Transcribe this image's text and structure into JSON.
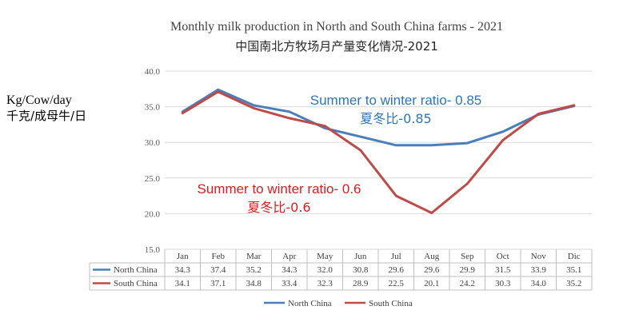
{
  "colors": {
    "north": "#4a7ebb",
    "south": "#be4b48",
    "annotation_north": "#2e75b6",
    "annotation_south": "#e31a1c",
    "grid": "#d9d9d9",
    "table_border": "#bfbfbf"
  },
  "chart_data": {
    "type": "line",
    "title": "Monthly milk production in North and South China farms -  2021",
    "subtitle": "中国南北方牧场月产量变化情况-2021",
    "ylabel": "Kg/Cow/day",
    "ylabel_cn": "千克/成母牛/日",
    "ylim": [
      15.0,
      40.0
    ],
    "yticks": [
      "40.0",
      "35.0",
      "30.0",
      "25.0",
      "20.0",
      "15.0"
    ],
    "grid": true,
    "legend_position": "bottom",
    "categories": [
      "Jan",
      "Feb",
      "Mar",
      "Apr",
      "May",
      "Jun",
      "Jul",
      "Aug",
      "Sep",
      "Oct",
      "Nov",
      "Dic"
    ],
    "series": [
      {
        "name": "North China",
        "color": "#4a7ebb",
        "values": [
          34.3,
          37.4,
          35.2,
          34.3,
          32.0,
          30.8,
          29.6,
          29.6,
          29.9,
          31.5,
          33.9,
          35.1
        ],
        "labels": [
          "34.3",
          "37.4",
          "35.2",
          "34.3",
          "32.0",
          "30.8",
          "29.6",
          "29.6",
          "29.9",
          "31.5",
          "33.9",
          "35.1"
        ]
      },
      {
        "name": "South China",
        "color": "#be4b48",
        "values": [
          34.1,
          37.1,
          34.8,
          33.4,
          32.3,
          28.9,
          22.5,
          20.1,
          24.2,
          30.3,
          34.0,
          35.2
        ],
        "labels": [
          "34.1",
          "37.1",
          "34.8",
          "33.4",
          "32.3",
          "28.9",
          "22.5",
          "20.1",
          "24.2",
          "30.3",
          "34.0",
          "35.2"
        ]
      }
    ],
    "annotations": [
      {
        "text": "Summer to winter ratio- 0.85",
        "text_cn": "夏冬比-0.85",
        "series": "North China"
      },
      {
        "text": "Summer to winter ratio- 0.6",
        "text_cn": "夏冬比-0.6",
        "series": "South China"
      }
    ]
  }
}
